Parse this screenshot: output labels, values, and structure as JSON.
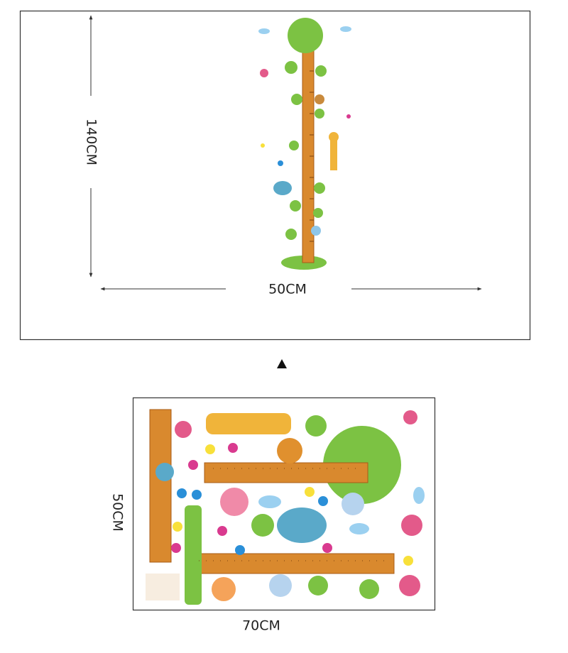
{
  "top": {
    "height_label": "140CM",
    "width_label": "50CM"
  },
  "bottom": {
    "height_label": "50CM",
    "width_label": "70CM"
  }
}
